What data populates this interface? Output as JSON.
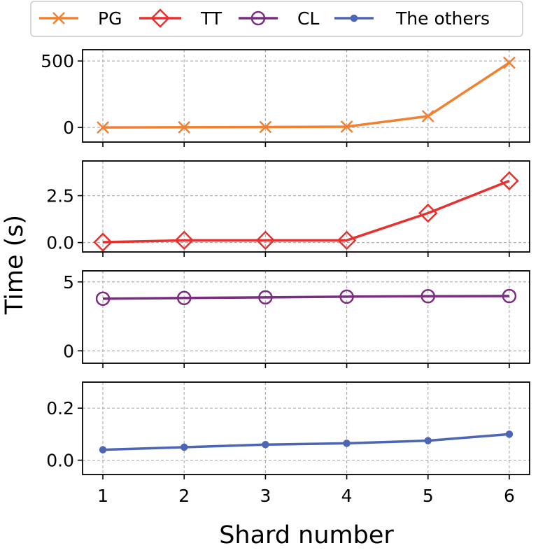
{
  "chart_data": {
    "type": "line",
    "xlabel": "Shard number",
    "ylabel": "Time (s)",
    "grid": true,
    "legend": {
      "placement": "top-center",
      "entries": [
        "PG",
        "TT",
        "CL",
        "The others"
      ]
    },
    "x": [
      1,
      2,
      3,
      4,
      5,
      6
    ],
    "x_ticks": [
      "1",
      "2",
      "3",
      "4",
      "5",
      "6"
    ],
    "xlim": [
      0.75,
      6.25
    ],
    "panels": [
      {
        "series": {
          "name": "PG",
          "color": "#f28031",
          "marker": "x",
          "values": [
            0,
            1,
            3,
            6,
            85,
            487
          ]
        },
        "ylim": [
          -110,
          585
        ],
        "y_ticks": [
          {
            "value": 0,
            "label": "0"
          },
          {
            "value": 500,
            "label": "500"
          }
        ]
      },
      {
        "series": {
          "name": "TT",
          "color": "#e8312f",
          "marker": "diamond",
          "values": [
            0.02,
            0.12,
            0.12,
            0.12,
            1.57,
            3.29
          ]
        },
        "ylim": [
          -0.5,
          4.35
        ],
        "y_ticks": [
          {
            "value": 0,
            "label": "0.0"
          },
          {
            "value": 2.5,
            "label": "2.5"
          }
        ]
      },
      {
        "series": {
          "name": "CL",
          "color": "#7b2d82",
          "marker": "circle",
          "values": [
            3.78,
            3.83,
            3.88,
            3.93,
            3.96,
            3.97
          ]
        },
        "ylim": [
          -0.9,
          5.8
        ],
        "y_ticks": [
          {
            "value": 0,
            "label": "0"
          },
          {
            "value": 5,
            "label": "5"
          }
        ]
      },
      {
        "series": {
          "name": "The others",
          "color": "#4c66b5",
          "marker": "dot",
          "values": [
            0.04,
            0.05,
            0.06,
            0.065,
            0.075,
            0.1
          ]
        },
        "ylim": [
          -0.055,
          0.3
        ],
        "y_ticks": [
          {
            "value": 0,
            "label": "0.0"
          },
          {
            "value": 0.2,
            "label": "0.2"
          }
        ]
      }
    ]
  }
}
